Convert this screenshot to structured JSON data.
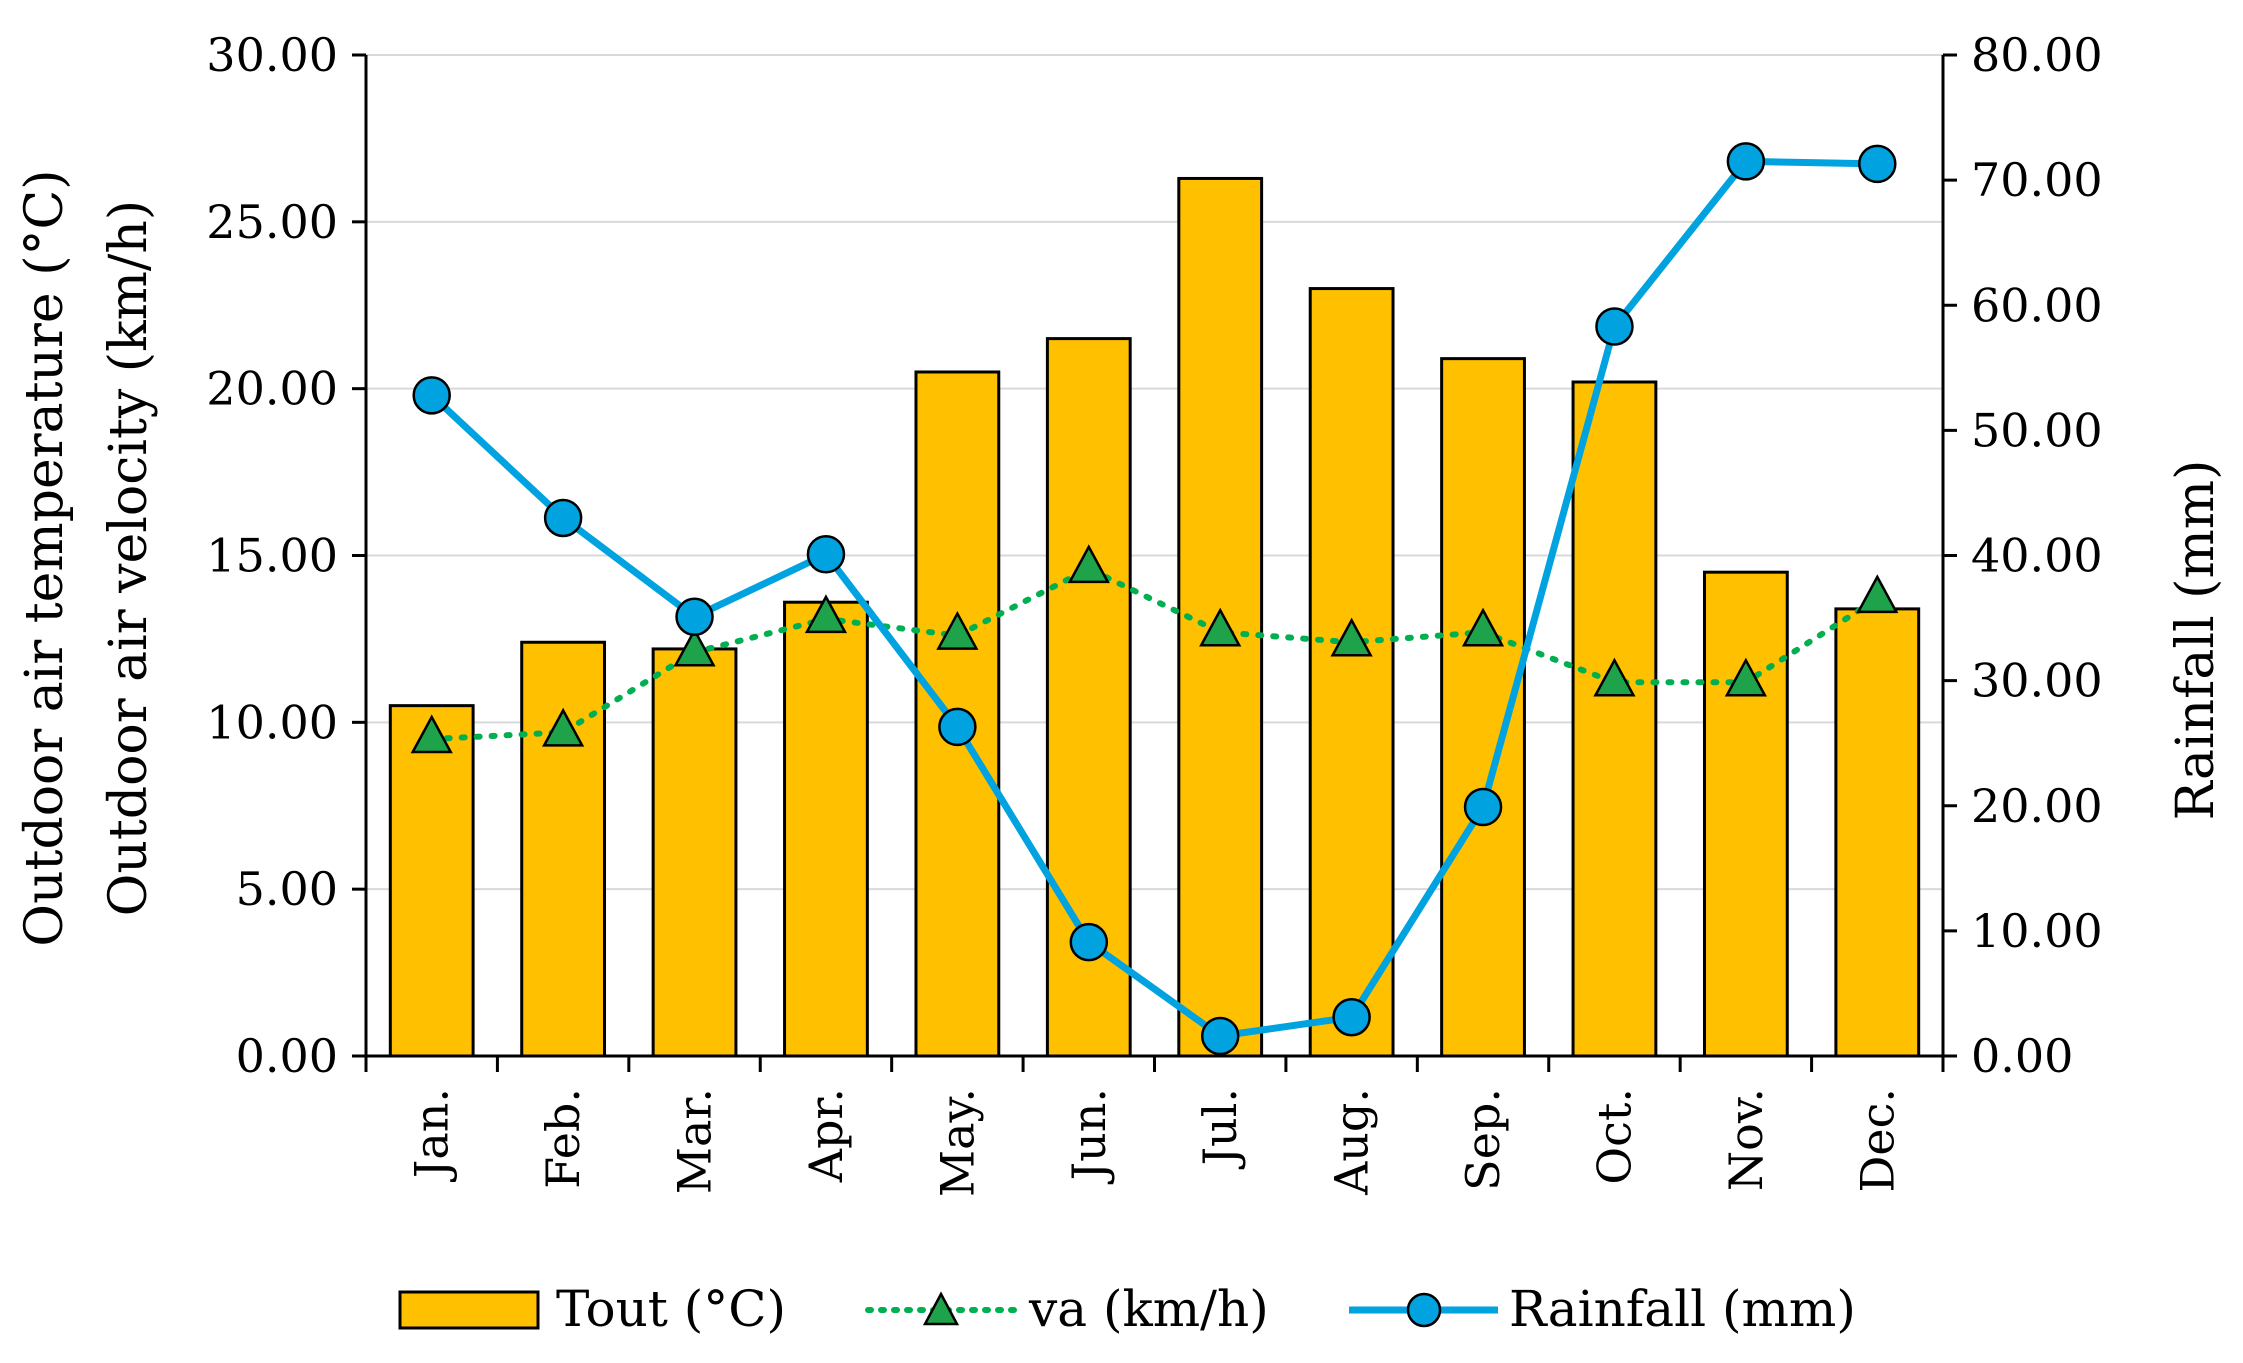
{
  "chart_data": {
    "type": "bar",
    "categories": [
      "Jan.",
      "Feb.",
      "Mar.",
      "Apr.",
      "May.",
      "Jun.",
      "Jul.",
      "Aug.",
      "Sep.",
      "Oct.",
      "Nov.",
      "Dec."
    ],
    "series": [
      {
        "name": "Tout (°C)",
        "type": "bar",
        "axis": "left",
        "color": "#FFC000",
        "values": [
          10.5,
          12.4,
          12.2,
          13.6,
          20.5,
          21.5,
          26.3,
          23.0,
          20.9,
          20.2,
          14.5,
          13.4
        ]
      },
      {
        "name": "va (km/h)",
        "type": "line",
        "axis": "left",
        "color": "#00B050",
        "marker": "triangle",
        "marker_color": "#1FA34A",
        "dash": "dotted",
        "values": [
          9.5,
          9.7,
          12.1,
          13.1,
          12.6,
          14.6,
          12.7,
          12.4,
          12.7,
          11.2,
          11.2,
          13.7
        ]
      },
      {
        "name": "Rainfall (mm)",
        "type": "line",
        "axis": "right",
        "color": "#00A3E0",
        "marker": "circle",
        "marker_color": "#00A3E0",
        "values": [
          52.8,
          43.0,
          35.1,
          40.1,
          26.3,
          9.1,
          1.6,
          3.1,
          19.9,
          58.3,
          71.5,
          71.3
        ]
      }
    ],
    "y_left": {
      "label_line1": "Outdoor air temperature (°C)",
      "label_line2": "Outdoor air velocity (km/h)",
      "ylim": [
        0,
        30
      ],
      "ticks": [
        "0.00",
        "5.00",
        "10.00",
        "15.00",
        "20.00",
        "25.00",
        "30.00"
      ]
    },
    "y_right": {
      "label": "Rainfall (mm)",
      "ylim": [
        0,
        80
      ],
      "ticks": [
        "0.00",
        "10.00",
        "20.00",
        "30.00",
        "40.00",
        "50.00",
        "60.00",
        "70.00",
        "80.00"
      ]
    },
    "xlabel": "",
    "grid": true,
    "legend_position": "bottom",
    "legend": [
      {
        "label": "Tout (°C)",
        "kind": "bar"
      },
      {
        "label": "va (km/h)",
        "kind": "dotted-triangle"
      },
      {
        "label": "Rainfall (mm)",
        "kind": "solid-circle"
      }
    ]
  }
}
